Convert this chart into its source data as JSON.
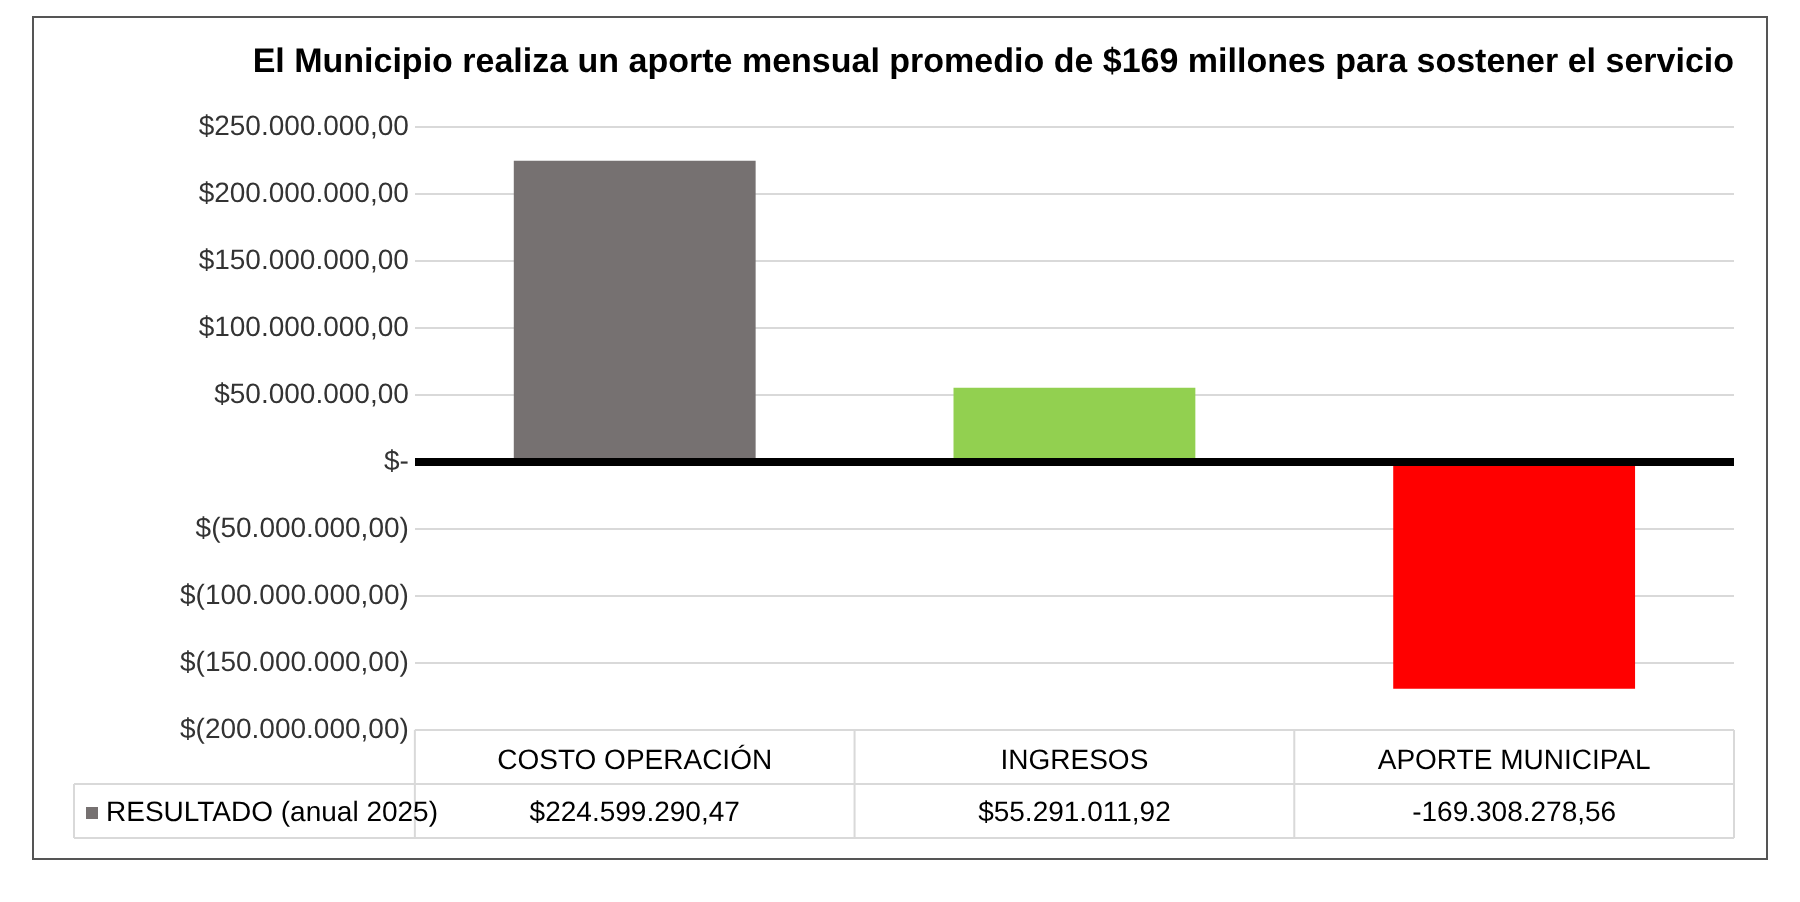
{
  "chart_data": {
    "type": "bar",
    "title": "El Municipio realiza un aporte mensual promedio de $169 millones para sostener el servicio",
    "categories": [
      "COSTO OPERACIÓN",
      "INGRESOS",
      "APORTE MUNICIPAL"
    ],
    "series": [
      {
        "name": "RESULTADO (anual 2025)",
        "colors": [
          "#767171",
          "#92d050",
          "#ff0000"
        ],
        "values": [
          224599290.47,
          55291011.92,
          -169308278.56
        ],
        "value_labels": [
          "$224.599.290,47",
          "$55.291.011,92",
          "-169.308.278,56"
        ]
      }
    ],
    "ylim": [
      -200000000,
      250000000
    ],
    "yticks": [
      {
        "value": 250000000,
        "label": "$250.000.000,00"
      },
      {
        "value": 200000000,
        "label": "$200.000.000,00"
      },
      {
        "value": 150000000,
        "label": "$150.000.000,00"
      },
      {
        "value": 100000000,
        "label": "$100.000.000,00"
      },
      {
        "value": 50000000,
        "label": "$50.000.000,00"
      },
      {
        "value": 0,
        "label": "$-"
      },
      {
        "value": -50000000,
        "label": "$(50.000.000,00)"
      },
      {
        "value": -100000000,
        "label": "$(100.000.000,00)"
      },
      {
        "value": -150000000,
        "label": "$(150.000.000,00)"
      },
      {
        "value": -200000000,
        "label": "$(200.000.000,00)"
      }
    ],
    "grid": "y",
    "legend": "bottom"
  }
}
